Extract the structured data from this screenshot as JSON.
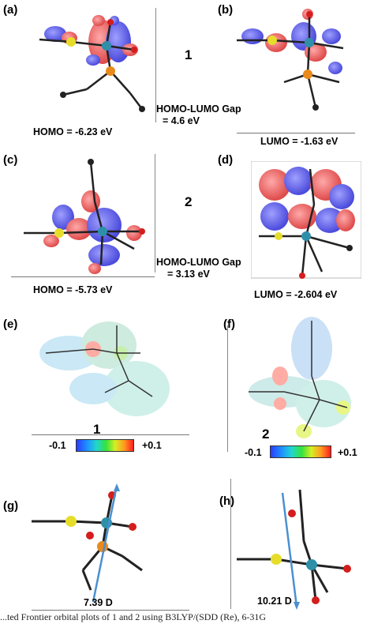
{
  "panels": {
    "a": {
      "label": "(a)",
      "energy": "HOMO = -6.23 eV"
    },
    "b": {
      "label": "(b)",
      "energy": "LUMO = -1.63 eV"
    },
    "c": {
      "label": "(c)",
      "energy": "HOMO = -5.73 eV"
    },
    "d": {
      "label": "(d)",
      "energy": "LUMO = -2.604 eV"
    },
    "e": {
      "label": "(e)"
    },
    "f": {
      "label": "(f)"
    },
    "g": {
      "label": "(g)",
      "dipole": "7.39 D"
    },
    "h": {
      "label": "(h)",
      "dipole": "10.21 D"
    }
  },
  "complex1": {
    "number": "1",
    "gap_title": "HOMO-LUMO Gap",
    "gap_value": "= 4.6 eV"
  },
  "complex2": {
    "number": "2",
    "gap_title": "HOMO-LUMO Gap",
    "gap_value": "= 3.13 eV"
  },
  "esp_scale": {
    "min": "-0.1",
    "max": "+0.1"
  },
  "caption": "...ted Frontier orbital plots of 1 and 2 using B3LYP/(SDD (Re), 6-31G"
}
